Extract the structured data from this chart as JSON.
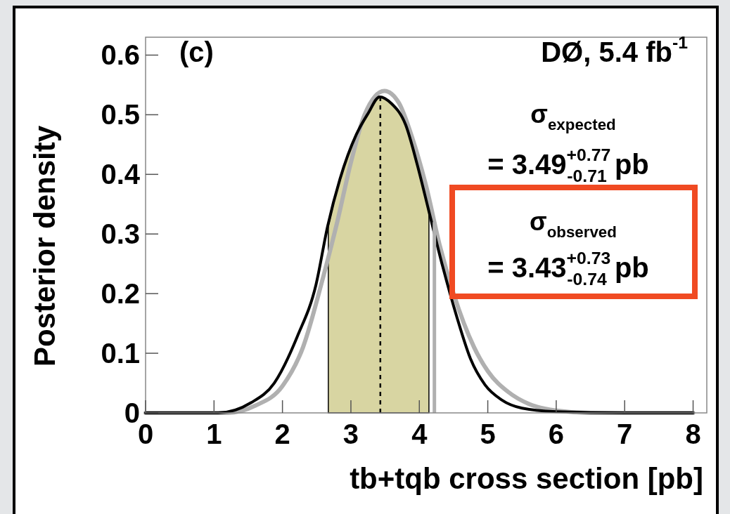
{
  "chart_data": {
    "type": "line",
    "xlabel": "tb+tqb cross section [pb]",
    "ylabel": "Posterior density",
    "xlim": [
      0,
      8.2
    ],
    "ylim": [
      0,
      0.63
    ],
    "xticks": [
      0,
      1,
      2,
      3,
      4,
      5,
      6,
      7,
      8
    ],
    "yticks": [
      0,
      0.1,
      0.2,
      0.3,
      0.4,
      0.5,
      0.6
    ],
    "series": [
      {
        "type": "area",
        "color": "#d8d5a2",
        "x": [
          2.67,
          2.84,
          3.08,
          3.25,
          3.42,
          3.59,
          3.8,
          3.97,
          4.14
        ],
        "values": [
          0.313,
          0.392,
          0.467,
          0.502,
          0.53,
          0.519,
          0.483,
          0.416,
          0.338
        ]
      },
      {
        "color": "#b0b0b0",
        "x": [
          0,
          0.5,
          1.2,
          1.6,
          2.0,
          2.3,
          2.6,
          2.8,
          3.0,
          3.2,
          3.49,
          3.7,
          3.9,
          4.1,
          4.3,
          4.5,
          4.8,
          5.0,
          5.3,
          5.6,
          6.0,
          6.5,
          8.0
        ],
        "values": [
          0,
          0,
          0,
          0.012,
          0.045,
          0.11,
          0.23,
          0.32,
          0.42,
          0.5,
          0.54,
          0.52,
          0.46,
          0.38,
          0.28,
          0.2,
          0.11,
          0.07,
          0.035,
          0.015,
          0.004,
          0,
          0
        ]
      },
      {
        "color": "#000000",
        "x": [
          0,
          0.5,
          1.06,
          1.54,
          1.88,
          2.22,
          2.49,
          2.66,
          2.84,
          3.08,
          3.25,
          3.42,
          3.59,
          3.8,
          3.97,
          4.14,
          4.34,
          4.55,
          4.75,
          4.96,
          5.2,
          5.5,
          6.0,
          7.0,
          8.0
        ],
        "values": [
          0,
          0,
          0,
          0.017,
          0.05,
          0.129,
          0.215,
          0.313,
          0.392,
          0.467,
          0.502,
          0.53,
          0.519,
          0.483,
          0.416,
          0.338,
          0.246,
          0.16,
          0.09,
          0.047,
          0.022,
          0.008,
          0.002,
          0,
          0
        ]
      }
    ],
    "ref_lines": [
      {
        "axis": "x",
        "value": 3.43,
        "color": "#000000",
        "line_style": "dashed"
      },
      {
        "axis": "x",
        "value": 4.22,
        "color": "#b0b0b0",
        "line_style": "solid"
      }
    ],
    "annotations": [
      "(c)",
      "DØ, 5.4 fb$^{-1}$",
      "σ$_{expected}$",
      "= 3.49$^{+0.77}$$_{-0.71}$ pb",
      "σ$_{observed}$",
      "= 3.43$^{+0.73}$$_{-0.74}$ pb"
    ],
    "grid": false
  }
}
